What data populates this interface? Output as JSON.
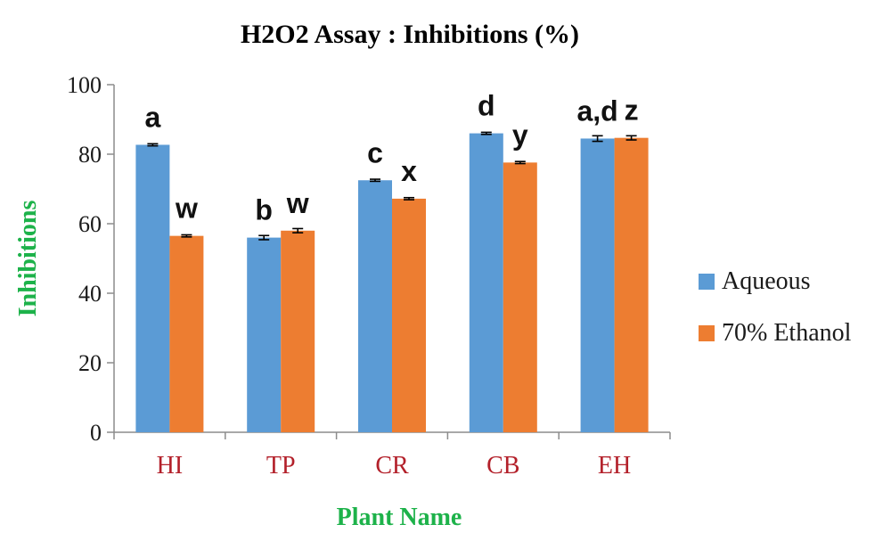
{
  "chart_data": {
    "type": "bar",
    "title": "H2O2 Assay : Inhibitions (%)",
    "xlabel": "Plant Name",
    "ylabel": "Inhibitions",
    "categories": [
      "HI",
      "TP",
      "CR",
      "CB",
      "EH"
    ],
    "ylim": [
      0,
      100
    ],
    "yticks": [
      "0",
      "20",
      "40",
      "60",
      "80",
      "100"
    ],
    "grid": false,
    "legend_position": "right",
    "series": [
      {
        "name": "Aqueous",
        "color": "#5b9bd5",
        "values": [
          82.7,
          56.0,
          72.5,
          86.0,
          84.5
        ],
        "errors": [
          0.3,
          0.6,
          0.3,
          0.3,
          0.8
        ],
        "significance": [
          "a",
          "b",
          "c",
          "d",
          "a,d"
        ]
      },
      {
        "name": "70% Ethanol",
        "color": "#ed7d31",
        "values": [
          56.5,
          58.0,
          67.2,
          77.6,
          84.7
        ],
        "errors": [
          0.3,
          0.6,
          0.3,
          0.3,
          0.6
        ],
        "significance": [
          "w",
          "w",
          "x",
          "y",
          "z"
        ]
      }
    ]
  }
}
